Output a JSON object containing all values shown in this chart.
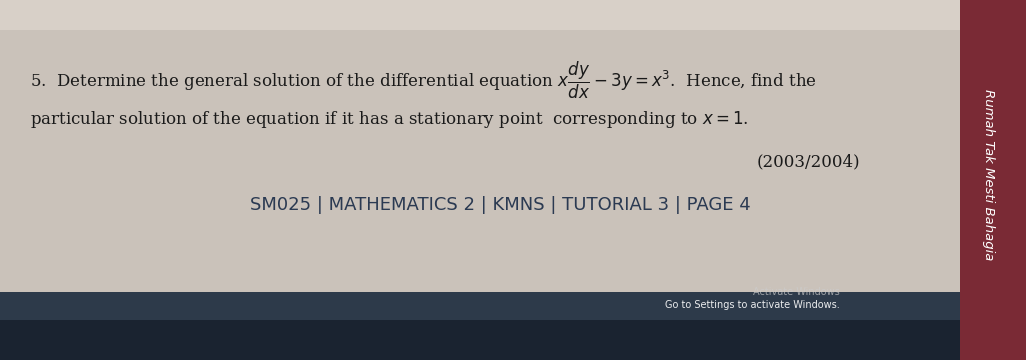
{
  "bg_color": "#d8d0c8",
  "main_text_color": "#1a1a1a",
  "faded_text_color": "#999999",
  "faded_text_color2": "#cccccc",
  "year": "(2003/2004)",
  "footer": "SM025 | MATHEMATICS 2 | KMNS | TUTORIAL 3 | PAGE 4",
  "activate_windows": "Activate Windows",
  "go_to_settings": "Go to Settings to activate Windows.",
  "side_text": "Rumah Tak Mesti Bahagia",
  "side_strip_color": "#7a2a35",
  "taskbar_color": "#2c3e50",
  "fig_width": 10.26,
  "fig_height": 3.6,
  "dpi": 100
}
